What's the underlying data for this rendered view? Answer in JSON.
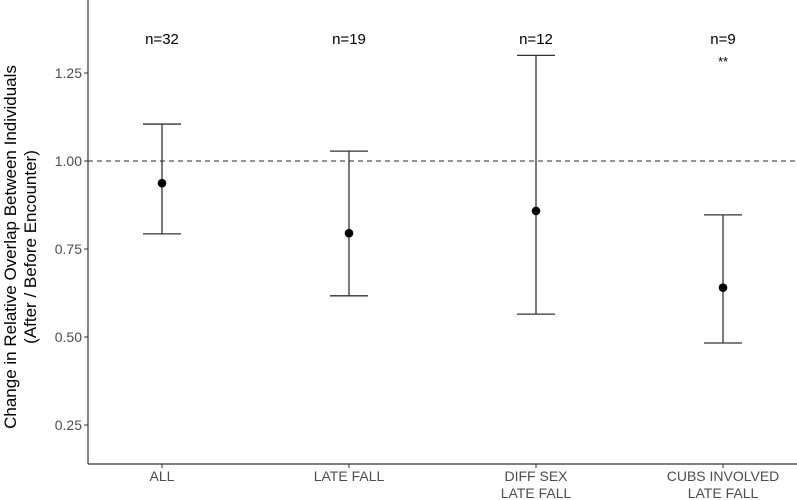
{
  "chart_data": {
    "type": "errorbar",
    "title": "",
    "xlabel": "",
    "ylabel": "Change in Relative Overlap Between Individuals",
    "ylabel_line2": "(After / Before Encounter)",
    "ylim": [
      0.145,
      1.46
    ],
    "yticks": [
      0.25,
      0.5,
      0.75,
      1.0,
      1.25
    ],
    "ytick_labels": [
      "0.25",
      "0.50",
      "0.75",
      "1.00",
      "1.25"
    ],
    "reference_line": {
      "y": 1.0,
      "style": "dashed"
    },
    "grid": false,
    "legend": null,
    "categories": [
      {
        "label_lines": [
          "ALL"
        ],
        "n_label": "n=32",
        "significance": "",
        "estimate": 0.937,
        "lower": 0.793,
        "upper": 1.105
      },
      {
        "label_lines": [
          "LATE FALL"
        ],
        "n_label": "n=19",
        "significance": "",
        "estimate": 0.795,
        "lower": 0.617,
        "upper": 1.028
      },
      {
        "label_lines": [
          "DIFF SEX",
          "LATE FALL"
        ],
        "n_label": "n=12",
        "significance": "",
        "estimate": 0.858,
        "lower": 0.565,
        "upper": 1.3
      },
      {
        "label_lines": [
          "CUBS INVOLVED",
          "LATE FALL"
        ],
        "n_label": "n=9",
        "significance": "**",
        "estimate": 0.64,
        "lower": 0.483,
        "upper": 0.847
      }
    ]
  },
  "colors": {
    "axis": "#333333",
    "point": "#000000",
    "errorbar": "#333333",
    "refline": "#555555",
    "tick_text": "#4d4d4d"
  }
}
